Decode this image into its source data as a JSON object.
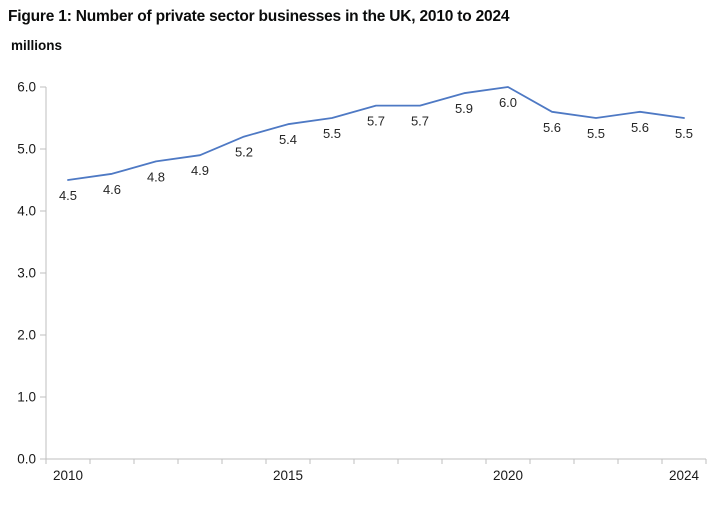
{
  "title": "Figure 1: Number of private sector businesses in the UK, 2010 to 2024",
  "subtitle": "millions",
  "chart_data": {
    "type": "line",
    "title": "Figure 1: Number of private sector businesses in the UK, 2010 to 2024",
    "unit_label": "millions",
    "x": [
      2010,
      2011,
      2012,
      2013,
      2014,
      2015,
      2016,
      2017,
      2018,
      2019,
      2020,
      2021,
      2022,
      2023,
      2024
    ],
    "values": [
      4.5,
      4.6,
      4.8,
      4.9,
      5.2,
      5.4,
      5.5,
      5.7,
      5.7,
      5.9,
      6.0,
      5.6,
      5.5,
      5.6,
      5.5
    ],
    "point_labels": [
      "4.5",
      "4.6",
      "4.8",
      "4.9",
      "5.2",
      "5.4",
      "5.5",
      "5.7",
      "5.7",
      "5.9",
      "6.0",
      "5.6",
      "5.5",
      "5.6",
      "5.5"
    ],
    "ylim": [
      0,
      6
    ],
    "y_ticks": [
      0,
      1,
      2,
      3,
      4,
      5,
      6
    ],
    "y_tick_labels": [
      "0.0",
      "1.0",
      "2.0",
      "3.0",
      "4.0",
      "5.0",
      "6.0"
    ],
    "x_tick_labels": [
      "2010",
      "2015",
      "2020",
      "2024"
    ],
    "grid": false,
    "legend": "none",
    "line_color": "#4E79C4",
    "axis_color": "#BFBFBF",
    "tick_label_color": "#1A1A1A",
    "data_label_color": "#262626"
  }
}
